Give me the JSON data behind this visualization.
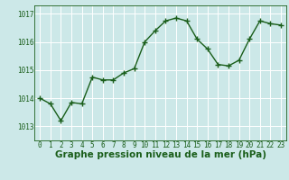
{
  "x": [
    0,
    1,
    2,
    3,
    4,
    5,
    6,
    7,
    8,
    9,
    10,
    11,
    12,
    13,
    14,
    15,
    16,
    17,
    18,
    19,
    20,
    21,
    22,
    23
  ],
  "y": [
    1014.0,
    1013.8,
    1013.2,
    1013.85,
    1013.8,
    1014.75,
    1014.65,
    1014.65,
    1014.9,
    1015.05,
    1016.0,
    1016.4,
    1016.75,
    1016.85,
    1016.75,
    1016.1,
    1015.75,
    1015.2,
    1015.15,
    1015.35,
    1016.1,
    1016.75,
    1016.65,
    1016.6
  ],
  "xlim": [
    -0.5,
    23.5
  ],
  "ylim": [
    1012.5,
    1017.3
  ],
  "yticks": [
    1013,
    1014,
    1015,
    1016,
    1017
  ],
  "xticks": [
    0,
    1,
    2,
    3,
    4,
    5,
    6,
    7,
    8,
    9,
    10,
    11,
    12,
    13,
    14,
    15,
    16,
    17,
    18,
    19,
    20,
    21,
    22,
    23
  ],
  "line_color": "#1a5e1a",
  "marker": "+",
  "marker_color": "#1a5e1a",
  "bg_color": "#cce8e8",
  "grid_color": "#ffffff",
  "xlabel": "Graphe pression niveau de la mer (hPa)",
  "xlabel_color": "#1a5e1a",
  "tick_color": "#1a5e1a",
  "tick_fontsize": 5.5,
  "xlabel_fontsize": 7.5,
  "linewidth": 1.0,
  "markersize": 4
}
